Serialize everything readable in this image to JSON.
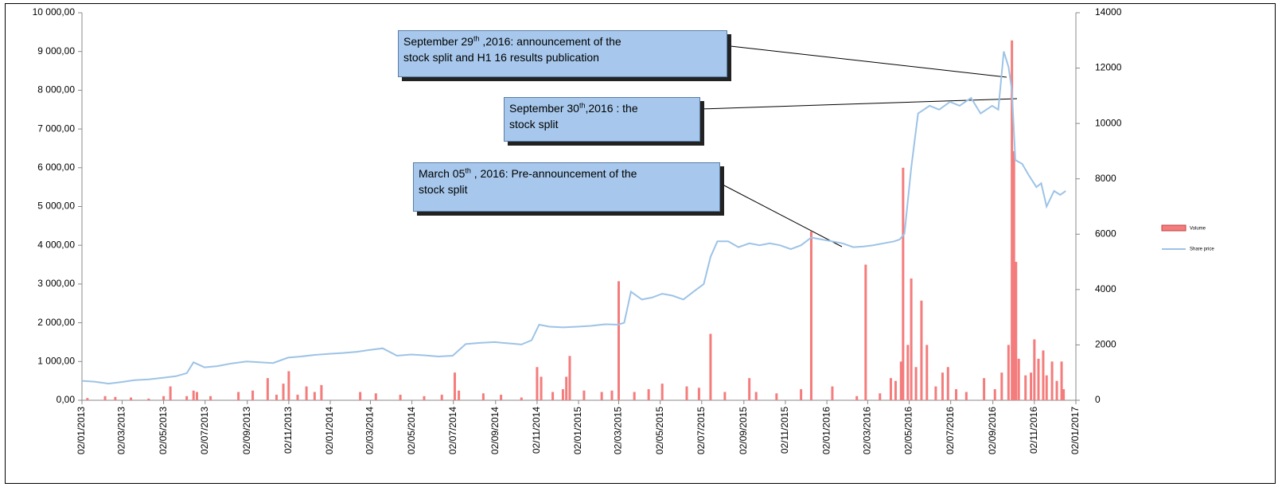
{
  "chart_data": {
    "type": "bar-line",
    "ylim": [
      0,
      10000
    ],
    "yticks": [
      {
        "value": 0,
        "label": "0,00"
      },
      {
        "value": 1000,
        "label": "1 000,00"
      },
      {
        "value": 2000,
        "label": "2 000,00"
      },
      {
        "value": 3000,
        "label": "3 000,00"
      },
      {
        "value": 4000,
        "label": "4 000,00"
      },
      {
        "value": 5000,
        "label": "5 000,00"
      },
      {
        "value": 6000,
        "label": "6 000,00"
      },
      {
        "value": 7000,
        "label": "7 000,00"
      },
      {
        "value": 8000,
        "label": "8 000,00"
      },
      {
        "value": 9000,
        "label": "9 000,00"
      },
      {
        "value": 10000,
        "label": "10 000,00"
      }
    ],
    "y2lim": [
      0,
      14000
    ],
    "y2ticks": [
      0,
      2000,
      4000,
      6000,
      8000,
      10000,
      12000,
      14000
    ],
    "xlim": [
      "02/01/2013",
      "02/01/2017"
    ],
    "xticks": [
      "02/01/2013",
      "02/03/2013",
      "02/05/2013",
      "02/07/2013",
      "02/09/2013",
      "02/11/2013",
      "02/01/2014",
      "02/03/2014",
      "02/05/2014",
      "02/07/2014",
      "02/09/2014",
      "02/11/2014",
      "02/01/2015",
      "02/03/2015",
      "02/05/2015",
      "02/07/2015",
      "02/09/2015",
      "02/11/2015",
      "02/01/2016",
      "02/03/2016",
      "02/05/2016",
      "02/07/2016",
      "02/09/2016",
      "02/11/2016",
      "02/01/2017"
    ],
    "series": [
      {
        "name": "Volume",
        "color": "#f47c7c",
        "axis": "y2",
        "x": [
          "10/01/2013",
          "05/02/2013",
          "20/02/2013",
          "15/03/2013",
          "10/04/2013",
          "02/05/2013",
          "12/05/2013",
          "05/06/2013",
          "15/06/2013",
          "20/06/2013",
          "10/07/2013",
          "20/08/2013",
          "10/09/2013",
          "02/10/2013",
          "15/10/2013",
          "25/10/2013",
          "02/11/2013",
          "15/11/2013",
          "28/11/2013",
          "10/12/2013",
          "20/12/2013",
          "15/02/2014",
          "10/03/2014",
          "15/04/2014",
          "20/05/2014",
          "15/06/2014",
          "04/07/2014",
          "10/07/2014",
          "15/08/2014",
          "10/09/2014",
          "10/10/2014",
          "02/11/2014",
          "08/11/2014",
          "25/11/2014",
          "10/12/2014",
          "15/12/2014",
          "20/12/2014",
          "10/01/2015",
          "05/02/2015",
          "20/02/2015",
          "02/03/2015",
          "25/03/2015",
          "15/04/2015",
          "05/05/2015",
          "10/06/2015",
          "28/06/2015",
          "15/07/2015",
          "05/08/2015",
          "10/09/2015",
          "20/09/2015",
          "20/10/2015",
          "25/11/2015",
          "10/12/2015",
          "10/01/2016",
          "15/02/2016",
          "28/02/2016",
          "20/03/2016",
          "05/04/2016",
          "12/04/2016",
          "20/04/2016",
          "23/04/2016",
          "30/04/2016",
          "05/05/2016",
          "12/05/2016",
          "20/05/2016",
          "28/05/2016",
          "10/06/2016",
          "20/06/2016",
          "28/06/2016",
          "10/07/2016",
          "25/07/2016",
          "20/08/2016",
          "05/09/2016",
          "15/09/2016",
          "25/09/2016",
          "30/09/2016",
          "03/10/2016",
          "06/10/2016",
          "10/10/2016",
          "20/10/2016",
          "28/10/2016",
          "02/11/2016",
          "08/11/2016",
          "15/11/2016",
          "20/11/2016",
          "28/11/2016",
          "05/12/2016",
          "12/12/2016",
          "15/12/2016"
        ],
        "values": [
          80,
          150,
          120,
          100,
          60,
          150,
          500,
          150,
          350,
          300,
          150,
          300,
          350,
          800,
          200,
          600,
          1050,
          200,
          500,
          300,
          550,
          300,
          250,
          200,
          150,
          200,
          1000,
          350,
          250,
          200,
          100,
          1200,
          850,
          300,
          400,
          850,
          1600,
          350,
          300,
          350,
          4300,
          300,
          400,
          600,
          500,
          450,
          2400,
          300,
          800,
          300,
          250,
          400,
          6100,
          500,
          150,
          4900,
          250,
          800,
          700,
          1400,
          8400,
          2000,
          4400,
          1200,
          3600,
          2000,
          500,
          1000,
          1200,
          400,
          300,
          800,
          400,
          1000,
          2000,
          13000,
          9000,
          5000,
          1500,
          900,
          1000,
          2200,
          1500,
          1800,
          900,
          1400,
          700,
          1400,
          400
        ]
      },
      {
        "name": "Share price",
        "color": "#9dc3e6",
        "x": [
          "02/01/2013",
          "20/01/2013",
          "10/02/2013",
          "01/03/2013",
          "20/03/2013",
          "10/04/2013",
          "01/05/2013",
          "20/05/2013",
          "05/06/2013",
          "15/06/2013",
          "01/07/2013",
          "20/07/2013",
          "10/08/2013",
          "01/09/2013",
          "20/09/2013",
          "10/10/2013",
          "01/11/2013",
          "20/11/2013",
          "10/12/2013",
          "01/01/2014",
          "20/01/2014",
          "10/02/2014",
          "01/03/2014",
          "20/03/2014",
          "10/04/2014",
          "01/05/2014",
          "20/05/2014",
          "10/06/2014",
          "01/07/2014",
          "20/07/2014",
          "10/08/2014",
          "01/09/2014",
          "20/09/2014",
          "10/10/2014",
          "25/10/2014",
          "05/11/2014",
          "20/11/2014",
          "10/12/2014",
          "01/01/2015",
          "20/01/2015",
          "10/02/2015",
          "01/03/2015",
          "10/03/2015",
          "20/03/2015",
          "05/04/2015",
          "20/04/2015",
          "05/05/2015",
          "20/05/2015",
          "05/06/2015",
          "20/06/2015",
          "05/07/2015",
          "15/07/2015",
          "25/07/2015",
          "10/08/2015",
          "25/08/2015",
          "10/09/2015",
          "25/09/2015",
          "10/10/2015",
          "25/10/2015",
          "10/11/2015",
          "25/11/2015",
          "10/12/2015",
          "25/12/2015",
          "10/01/2016",
          "25/01/2016",
          "10/02/2016",
          "25/02/2016",
          "10/03/2016",
          "25/03/2016",
          "10/04/2016",
          "18/04/2016",
          "25/04/2016",
          "05/05/2016",
          "15/05/2016",
          "01/06/2016",
          "15/06/2016",
          "01/07/2016",
          "15/07/2016",
          "01/08/2016",
          "15/08/2016",
          "01/09/2016",
          "10/09/2016",
          "18/09/2016",
          "25/09/2016",
          "30/09/2016",
          "05/10/2016",
          "15/10/2016",
          "25/10/2016",
          "05/11/2016",
          "12/11/2016",
          "20/11/2016",
          "01/12/2016",
          "10/12/2016",
          "18/12/2016"
        ],
        "values": [
          500,
          480,
          430,
          470,
          520,
          540,
          580,
          620,
          700,
          980,
          850,
          880,
          950,
          1000,
          980,
          960,
          1100,
          1130,
          1170,
          1200,
          1220,
          1250,
          1300,
          1340,
          1150,
          1180,
          1160,
          1130,
          1150,
          1450,
          1480,
          1500,
          1470,
          1440,
          1550,
          1950,
          1900,
          1880,
          1900,
          1920,
          1960,
          1950,
          2000,
          2800,
          2600,
          2650,
          2750,
          2700,
          2600,
          2800,
          3000,
          3700,
          4100,
          4100,
          3950,
          4050,
          4000,
          4050,
          4000,
          3900,
          4000,
          4200,
          4150,
          4100,
          4050,
          3950,
          3970,
          4000,
          4050,
          4100,
          4150,
          4300,
          6000,
          7400,
          7600,
          7500,
          7700,
          7600,
          7800,
          7400,
          7600,
          7500,
          9000,
          8600,
          8000,
          6200,
          6100,
          5800,
          5500,
          5600,
          5000,
          5400,
          5300,
          5400
        ]
      }
    ],
    "annotations": [
      {
        "lines": [
          [
            "September 29",
            "th",
            " ,2016: announcement of the"
          ],
          [
            "stock split and H1 16 results publication"
          ]
        ]
      },
      {
        "lines": [
          [
            "September 30",
            "th",
            ",2016 : the"
          ],
          [
            "stock split"
          ]
        ]
      },
      {
        "lines": [
          [
            "March 05",
            "th",
            " , 2016:  Pre-announcement of the"
          ],
          [
            "stock split"
          ]
        ]
      }
    ]
  }
}
